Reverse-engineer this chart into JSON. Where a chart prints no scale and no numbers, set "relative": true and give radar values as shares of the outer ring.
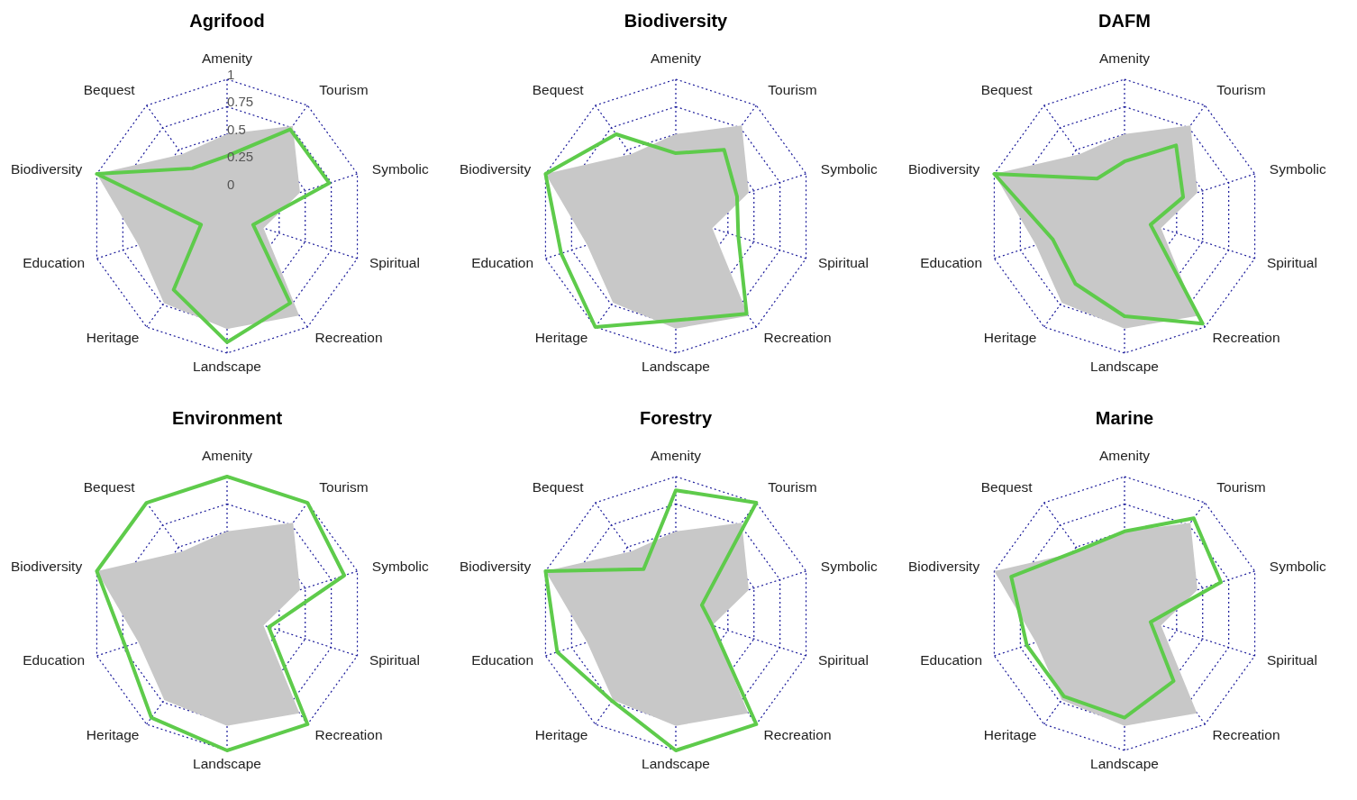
{
  "chart_data": [
    {
      "type": "radar",
      "title": "Agrifood",
      "categories": [
        "Amenity",
        "Tourism",
        "Symbolic",
        "Spiritual",
        "Recreation",
        "Landscape",
        "Heritage",
        "Education",
        "Biodiversity",
        "Bequest"
      ],
      "ylim": [
        -0.25,
        1
      ],
      "yticks": [
        0,
        0.25,
        0.5,
        0.75,
        1
      ],
      "grid": true,
      "series": [
        {
          "type": "area",
          "color": "#c8c8c8",
          "values": [
            0.5,
            0.77,
            0.45,
            0.1,
            0.87,
            0.78,
            0.73,
            0.6,
            1.0,
            0.45
          ]
        },
        {
          "color": "#5ecb4b",
          "values": [
            0.3,
            0.73,
            0.73,
            0,
            0.73,
            0.9,
            0.58,
            0,
            1.0,
            0.29
          ]
        }
      ]
    },
    {
      "type": "radar",
      "title": "Biodiversity",
      "categories": [
        "Amenity",
        "Tourism",
        "Symbolic",
        "Spiritual",
        "Recreation",
        "Landscape",
        "Heritage",
        "Education",
        "Biodiversity",
        "Bequest"
      ],
      "relative": true,
      "grid": true,
      "tick_labels": "x",
      "series": [
        {
          "type": "area",
          "color": "#c8c8c8",
          "values": [
            0.6,
            0.82,
            0.56,
            0.28,
            0.9,
            0.82,
            0.78,
            0.68,
            1.0,
            0.56
          ]
        },
        {
          "color": "#5ecb4b",
          "values": [
            0.46,
            0.6,
            0.47,
            0.48,
            0.88,
            0.76,
            1.0,
            0.88,
            1.0,
            0.74
          ]
        }
      ]
    },
    {
      "type": "radar",
      "title": "DAFM",
      "categories": [
        "Amenity",
        "Tourism",
        "Symbolic",
        "Spiritual",
        "Recreation",
        "Landscape",
        "Heritage",
        "Education",
        "Biodiversity",
        "Bequest"
      ],
      "relative": true,
      "grid": true,
      "tick_labels": "x",
      "series": [
        {
          "type": "area",
          "color": "#c8c8c8",
          "values": [
            0.6,
            0.82,
            0.56,
            0.28,
            0.9,
            0.82,
            0.78,
            0.68,
            1.0,
            0.56
          ]
        },
        {
          "color": "#5ecb4b",
          "values": [
            0.4,
            0.64,
            0.45,
            0.2,
            0.97,
            0.73,
            0.61,
            0.55,
            1.0,
            0.34
          ]
        }
      ]
    },
    {
      "type": "radar",
      "title": "Environment",
      "categories": [
        "Amenity",
        "Tourism",
        "Symbolic",
        "Spiritual",
        "Recreation",
        "Landscape",
        "Heritage",
        "Education",
        "Biodiversity",
        "Bequest"
      ],
      "relative": true,
      "grid": true,
      "tick_labels": "x",
      "series": [
        {
          "type": "area",
          "color": "#c8c8c8",
          "values": [
            0.6,
            0.82,
            0.56,
            0.28,
            0.9,
            0.82,
            0.78,
            0.68,
            1.0,
            0.56
          ]
        },
        {
          "color": "#5ecb4b",
          "values": [
            1.0,
            1.0,
            0.9,
            0.32,
            1.0,
            1.0,
            0.94,
            0.78,
            1.0,
            1.0
          ]
        }
      ]
    },
    {
      "type": "radar",
      "title": "Forestry",
      "categories": [
        "Amenity",
        "Tourism",
        "Symbolic",
        "Spiritual",
        "Recreation",
        "Landscape",
        "Heritage",
        "Education",
        "Biodiversity",
        "Bequest"
      ],
      "relative": true,
      "grid": true,
      "tick_labels": "x",
      "series": [
        {
          "type": "area",
          "color": "#c8c8c8",
          "values": [
            0.6,
            0.82,
            0.56,
            0.28,
            0.9,
            0.82,
            0.78,
            0.68,
            1.0,
            0.56
          ]
        },
        {
          "color": "#5ecb4b",
          "values": [
            0.9,
            1.0,
            0.2,
            0.28,
            1.0,
            1.0,
            0.79,
            0.91,
            1.0,
            0.4
          ]
        }
      ]
    },
    {
      "type": "radar",
      "title": "Marine",
      "categories": [
        "Amenity",
        "Tourism",
        "Symbolic",
        "Spiritual",
        "Recreation",
        "Landscape",
        "Heritage",
        "Education",
        "Biodiversity",
        "Bequest"
      ],
      "relative": true,
      "grid": true,
      "tick_labels": "x",
      "series": [
        {
          "type": "area",
          "color": "#c8c8c8",
          "values": [
            0.6,
            0.82,
            0.56,
            0.28,
            0.9,
            0.82,
            0.78,
            0.68,
            1.0,
            0.56
          ]
        },
        {
          "color": "#5ecb4b",
          "values": [
            0.6,
            0.86,
            0.74,
            0.2,
            0.61,
            0.76,
            0.75,
            0.75,
            0.87,
            0.57
          ]
        }
      ]
    }
  ]
}
